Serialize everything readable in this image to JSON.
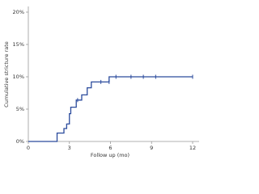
{
  "chart_data": {
    "type": "step",
    "x_label": "Follow up (mo)",
    "y_label": "Cumulative stricture rate",
    "x": [
      0,
      2.1,
      2.6,
      2.8,
      3.0,
      3.1,
      3.5,
      3.9,
      4.3,
      4.6,
      5.9,
      12
    ],
    "values": [
      0,
      1.3,
      2.0,
      2.7,
      4.3,
      5.3,
      6.4,
      7.2,
      8.3,
      9.2,
      10,
      10
    ],
    "censor_x": [
      3.6,
      5.3,
      5.9,
      6.4,
      7.5,
      8.4,
      9.3,
      12
    ],
    "censor_values": [
      6.4,
      9.2,
      9.2,
      10,
      10,
      10,
      10,
      10
    ],
    "color": "#2a4a9c",
    "xlim": [
      0,
      12
    ],
    "xticks": [
      0,
      3,
      6,
      9,
      12
    ],
    "ylim": [
      0,
      20
    ],
    "yticks": [
      {
        "value": 0,
        "label": "0%"
      },
      {
        "value": 5,
        "label": "5%"
      },
      {
        "value": 10,
        "label": "10%"
      },
      {
        "value": 15,
        "label": "15%"
      },
      {
        "value": 20,
        "label": "20%"
      }
    ]
  }
}
